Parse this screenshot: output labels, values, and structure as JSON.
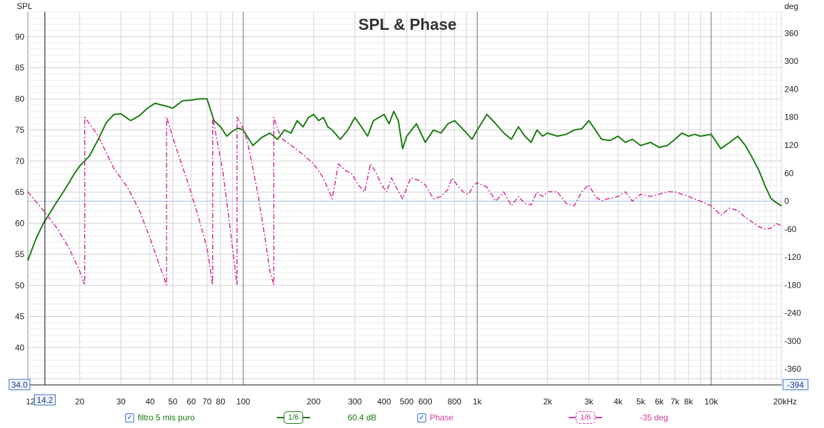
{
  "chart_data": {
    "type": "line",
    "title": "SPL & Phase",
    "ylabel_left": "SPL",
    "ylabel_right": "deg",
    "x_scale": "log",
    "xlim": [
      12,
      20000
    ],
    "ylim_left": [
      34,
      94
    ],
    "ylim_right": [
      -394,
      406
    ],
    "x_ticks": [
      12,
      20,
      30,
      40,
      50,
      60,
      70,
      80,
      100,
      200,
      300,
      400,
      500,
      600,
      800,
      1000,
      2000,
      3000,
      4000,
      5000,
      6000,
      7000,
      8000,
      10000,
      20000
    ],
    "x_tick_labels": [
      "12",
      "20",
      "30",
      "40",
      "50",
      "60",
      "70",
      "80",
      "100",
      "200",
      "300",
      "400",
      "500",
      "600",
      "800",
      "1k",
      "2k",
      "3k",
      "4k",
      "5k",
      "6k",
      "7k",
      "8k",
      "10k",
      "20kHz"
    ],
    "y_ticks_left": [
      40,
      45,
      50,
      55,
      60,
      65,
      70,
      75,
      80,
      85,
      90
    ],
    "y_ticks_right": [
      -360,
      -300,
      -240,
      -180,
      -120,
      -60,
      0,
      60,
      120,
      180,
      240,
      300,
      360
    ],
    "grid": true,
    "cursor": {
      "x_label": "14.2",
      "y_left_label": "34.0",
      "y_right_label": "-394"
    },
    "series": [
      {
        "name": "filtro 5 mis puro",
        "axis": "left",
        "color": "#1a7a10",
        "style": "solid",
        "smoothing": "1/6",
        "value_label": "60.4 dB",
        "points": [
          [
            12,
            54
          ],
          [
            13,
            57.5
          ],
          [
            14,
            60
          ],
          [
            15,
            61.8
          ],
          [
            16,
            63.5
          ],
          [
            17,
            65
          ],
          [
            18,
            66.5
          ],
          [
            19,
            68
          ],
          [
            20,
            69.2
          ],
          [
            22,
            70.8
          ],
          [
            24,
            73.5
          ],
          [
            26,
            76.2
          ],
          [
            28,
            77.5
          ],
          [
            30,
            77.6
          ],
          [
            33,
            76.5
          ],
          [
            36,
            77.3
          ],
          [
            39,
            78.5
          ],
          [
            42,
            79.3
          ],
          [
            46,
            78.9
          ],
          [
            50,
            78.5
          ],
          [
            55,
            79.7
          ],
          [
            60,
            79.8
          ],
          [
            65,
            80
          ],
          [
            70,
            80
          ],
          [
            75,
            76.5
          ],
          [
            80,
            75.5
          ],
          [
            85,
            74
          ],
          [
            90,
            74.8
          ],
          [
            95,
            75.3
          ],
          [
            100,
            75
          ],
          [
            110,
            72.5
          ],
          [
            120,
            73.8
          ],
          [
            130,
            74.5
          ],
          [
            140,
            73.5
          ],
          [
            150,
            75
          ],
          [
            160,
            74.5
          ],
          [
            170,
            76.5
          ],
          [
            180,
            75.5
          ],
          [
            190,
            77
          ],
          [
            200,
            77.5
          ],
          [
            210,
            76.5
          ],
          [
            220,
            77
          ],
          [
            230,
            75.5
          ],
          [
            240,
            75
          ],
          [
            260,
            73.5
          ],
          [
            280,
            75
          ],
          [
            300,
            77
          ],
          [
            320,
            75.5
          ],
          [
            340,
            74
          ],
          [
            360,
            76.5
          ],
          [
            380,
            77
          ],
          [
            400,
            77.5
          ],
          [
            420,
            76
          ],
          [
            440,
            78
          ],
          [
            460,
            76.5
          ],
          [
            480,
            72
          ],
          [
            500,
            74
          ],
          [
            550,
            76
          ],
          [
            600,
            73
          ],
          [
            650,
            75
          ],
          [
            700,
            74.5
          ],
          [
            750,
            76
          ],
          [
            800,
            76.5
          ],
          [
            850,
            75.5
          ],
          [
            900,
            74.5
          ],
          [
            950,
            73.5
          ],
          [
            1000,
            75
          ],
          [
            1100,
            77.5
          ],
          [
            1200,
            76
          ],
          [
            1300,
            74.5
          ],
          [
            1400,
            73.5
          ],
          [
            1500,
            75.5
          ],
          [
            1600,
            74
          ],
          [
            1700,
            73
          ],
          [
            1800,
            75
          ],
          [
            1900,
            74
          ],
          [
            2000,
            74.5
          ],
          [
            2200,
            74
          ],
          [
            2400,
            74.3
          ],
          [
            2600,
            75
          ],
          [
            2800,
            75.2
          ],
          [
            3000,
            76.5
          ],
          [
            3200,
            75
          ],
          [
            3400,
            73.5
          ],
          [
            3700,
            73.3
          ],
          [
            4000,
            74
          ],
          [
            4300,
            73
          ],
          [
            4600,
            73.5
          ],
          [
            5000,
            72.5
          ],
          [
            5500,
            73
          ],
          [
            6000,
            72.2
          ],
          [
            6500,
            72.5
          ],
          [
            7000,
            73.5
          ],
          [
            7500,
            74.5
          ],
          [
            8000,
            74
          ],
          [
            8500,
            74.3
          ],
          [
            9000,
            74
          ],
          [
            10000,
            74.3
          ],
          [
            11000,
            72
          ],
          [
            12000,
            73
          ],
          [
            13000,
            74
          ],
          [
            14000,
            72.5
          ],
          [
            15000,
            70.5
          ],
          [
            16000,
            68.5
          ],
          [
            17000,
            66
          ],
          [
            18000,
            64
          ],
          [
            19000,
            63.3
          ],
          [
            20000,
            62.8
          ]
        ]
      },
      {
        "name": "Phase",
        "axis": "right",
        "color": "#d6389e",
        "style": "dashdot",
        "smoothing": "1/6",
        "value_label": "-35 deg",
        "points": [
          [
            12,
            20
          ],
          [
            14,
            -20
          ],
          [
            16,
            -58
          ],
          [
            18,
            -100
          ],
          [
            20,
            -150
          ],
          [
            21,
            -180
          ],
          [
            21,
            180
          ],
          [
            24,
            140
          ],
          [
            28,
            70
          ],
          [
            32,
            30
          ],
          [
            36,
            -20
          ],
          [
            40,
            -80
          ],
          [
            44,
            -140
          ],
          [
            47,
            -180
          ],
          [
            47,
            180
          ],
          [
            52,
            110
          ],
          [
            58,
            40
          ],
          [
            64,
            -30
          ],
          [
            70,
            -100
          ],
          [
            74,
            -180
          ],
          [
            74,
            180
          ],
          [
            78,
            120
          ],
          [
            82,
            60
          ],
          [
            86,
            -20
          ],
          [
            90,
            -100
          ],
          [
            94,
            -180
          ],
          [
            94,
            180
          ],
          [
            98,
            165
          ],
          [
            104,
            130
          ],
          [
            110,
            70
          ],
          [
            116,
            10
          ],
          [
            124,
            -80
          ],
          [
            130,
            -150
          ],
          [
            135,
            -180
          ],
          [
            135,
            180
          ],
          [
            145,
            135
          ],
          [
            160,
            120
          ],
          [
            180,
            100
          ],
          [
            200,
            80
          ],
          [
            220,
            50
          ],
          [
            240,
            5
          ],
          [
            255,
            80
          ],
          [
            275,
            65
          ],
          [
            290,
            60
          ],
          [
            310,
            35
          ],
          [
            330,
            20
          ],
          [
            350,
            80
          ],
          [
            370,
            60
          ],
          [
            390,
            35
          ],
          [
            410,
            20
          ],
          [
            430,
            50
          ],
          [
            450,
            30
          ],
          [
            480,
            5
          ],
          [
            520,
            50
          ],
          [
            560,
            45
          ],
          [
            600,
            35
          ],
          [
            650,
            5
          ],
          [
            700,
            10
          ],
          [
            750,
            25
          ],
          [
            780,
            50
          ],
          [
            820,
            35
          ],
          [
            870,
            20
          ],
          [
            920,
            15
          ],
          [
            970,
            35
          ],
          [
            1000,
            40
          ],
          [
            1100,
            30
          ],
          [
            1150,
            15
          ],
          [
            1200,
            0
          ],
          [
            1300,
            20
          ],
          [
            1400,
            -10
          ],
          [
            1500,
            10
          ],
          [
            1600,
            -5
          ],
          [
            1700,
            -8
          ],
          [
            1800,
            20
          ],
          [
            1900,
            10
          ],
          [
            2000,
            20
          ],
          [
            2200,
            20
          ],
          [
            2400,
            -5
          ],
          [
            2600,
            -10
          ],
          [
            2800,
            20
          ],
          [
            3000,
            35
          ],
          [
            3200,
            10
          ],
          [
            3400,
            0
          ],
          [
            3600,
            5
          ],
          [
            4000,
            10
          ],
          [
            4300,
            20
          ],
          [
            4600,
            0
          ],
          [
            5000,
            15
          ],
          [
            5500,
            10
          ],
          [
            6000,
            15
          ],
          [
            6500,
            20
          ],
          [
            7000,
            20
          ],
          [
            8000,
            10
          ],
          [
            9000,
            0
          ],
          [
            10000,
            -10
          ],
          [
            11000,
            -30
          ],
          [
            12000,
            -15
          ],
          [
            13000,
            -20
          ],
          [
            14000,
            -35
          ],
          [
            15000,
            -45
          ],
          [
            16000,
            -55
          ],
          [
            17000,
            -60
          ],
          [
            18000,
            -58
          ],
          [
            19000,
            -48
          ],
          [
            20000,
            -53
          ]
        ]
      }
    ]
  }
}
